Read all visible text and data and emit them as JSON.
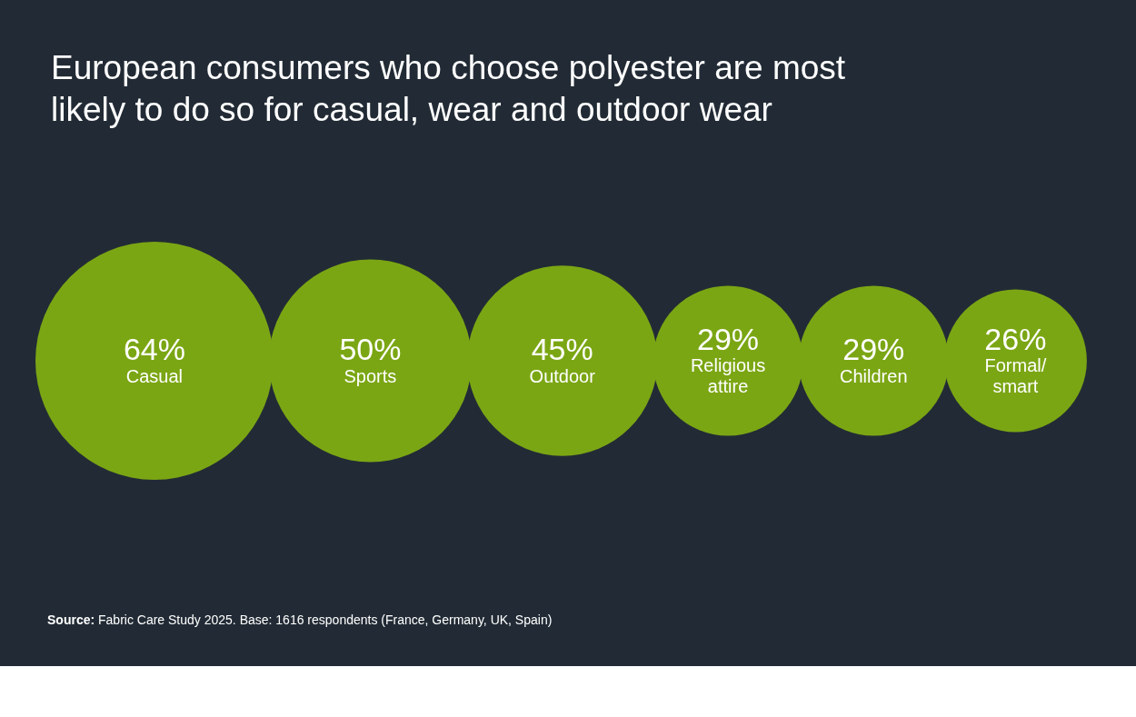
{
  "chart_data": {
    "type": "other",
    "title": "European consumers who choose polyester are most likely to do so for casual, wear and outdoor wear",
    "categories": [
      "Casual",
      "Sports",
      "Outdoor",
      "Religious attire",
      "Children",
      "Formal/smart"
    ],
    "values": [
      64,
      50,
      45,
      29,
      29,
      26
    ],
    "value_labels": [
      "64%",
      "50%",
      "45%",
      "29%",
      "29%",
      "26%"
    ],
    "color": "#7ba614",
    "annotations": [
      "Source: Fabric Care Study 2025. Base: 1616 respondents (France, Germany, UK, Spain)"
    ]
  }
}
